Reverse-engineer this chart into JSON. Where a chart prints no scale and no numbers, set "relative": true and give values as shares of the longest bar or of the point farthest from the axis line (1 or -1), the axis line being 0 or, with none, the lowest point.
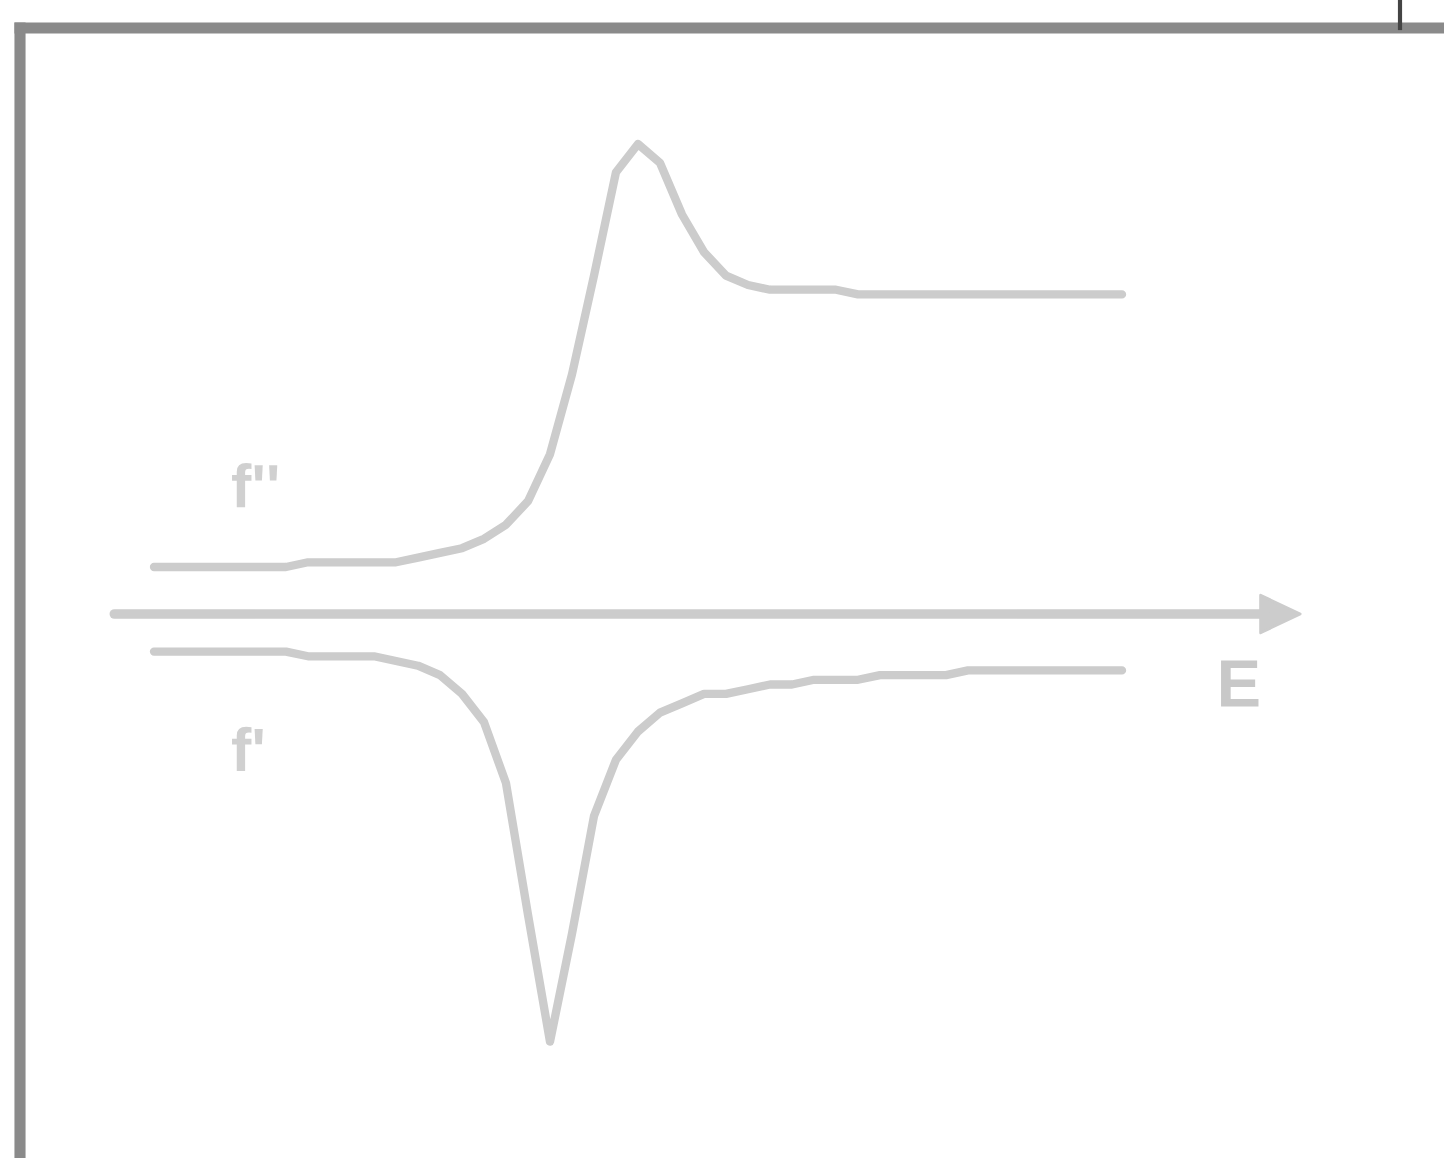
{
  "chart_data": {
    "type": "line",
    "relative": true,
    "xlabel": "E",
    "legend": false,
    "marker": "none",
    "line_style": "solid",
    "categories": [
      null,
      null,
      null,
      null,
      null,
      null,
      null,
      null,
      null,
      null,
      null,
      null,
      null,
      null,
      null,
      null,
      null,
      null,
      null,
      null,
      null,
      null,
      null,
      null,
      null,
      null,
      null,
      null,
      null,
      null,
      null,
      null,
      null,
      null,
      null,
      null,
      null,
      null,
      null,
      null,
      null,
      null,
      null,
      null,
      null
    ],
    "series": [
      {
        "name": "f''",
        "color": "#cccccc",
        "values": [
          0.1,
          0.1,
          0.1,
          0.1,
          0.1,
          0.1,
          0.1,
          0.11,
          0.11,
          0.11,
          0.11,
          0.11,
          0.12,
          0.13,
          0.14,
          0.16,
          0.19,
          0.24,
          0.34,
          0.51,
          0.72,
          0.94,
          1,
          0.96,
          0.85,
          0.77,
          0.72,
          0.7,
          0.69,
          0.69,
          0.69,
          0.69,
          0.68,
          0.68,
          0.68,
          0.68,
          0.68,
          0.68,
          0.68,
          0.68,
          0.68,
          0.68,
          0.68,
          0.68,
          0.68
        ]
      },
      {
        "name": "f'",
        "color": "#cccccc",
        "values": [
          -0.08,
          -0.08,
          -0.08,
          -0.08,
          -0.08,
          -0.08,
          -0.08,
          -0.09,
          -0.09,
          -0.09,
          -0.09,
          -0.1,
          -0.11,
          -0.13,
          -0.17,
          -0.23,
          -0.36,
          -0.64,
          -0.91,
          -0.68,
          -0.43,
          -0.31,
          -0.25,
          -0.21,
          -0.19,
          -0.17,
          -0.17,
          -0.16,
          -0.15,
          -0.15,
          -0.14,
          -0.14,
          -0.14,
          -0.13,
          -0.13,
          -0.13,
          -0.13,
          -0.12,
          -0.12,
          -0.12,
          -0.12,
          -0.12,
          -0.12,
          -0.12,
          -0.12
        ]
      }
    ]
  }
}
